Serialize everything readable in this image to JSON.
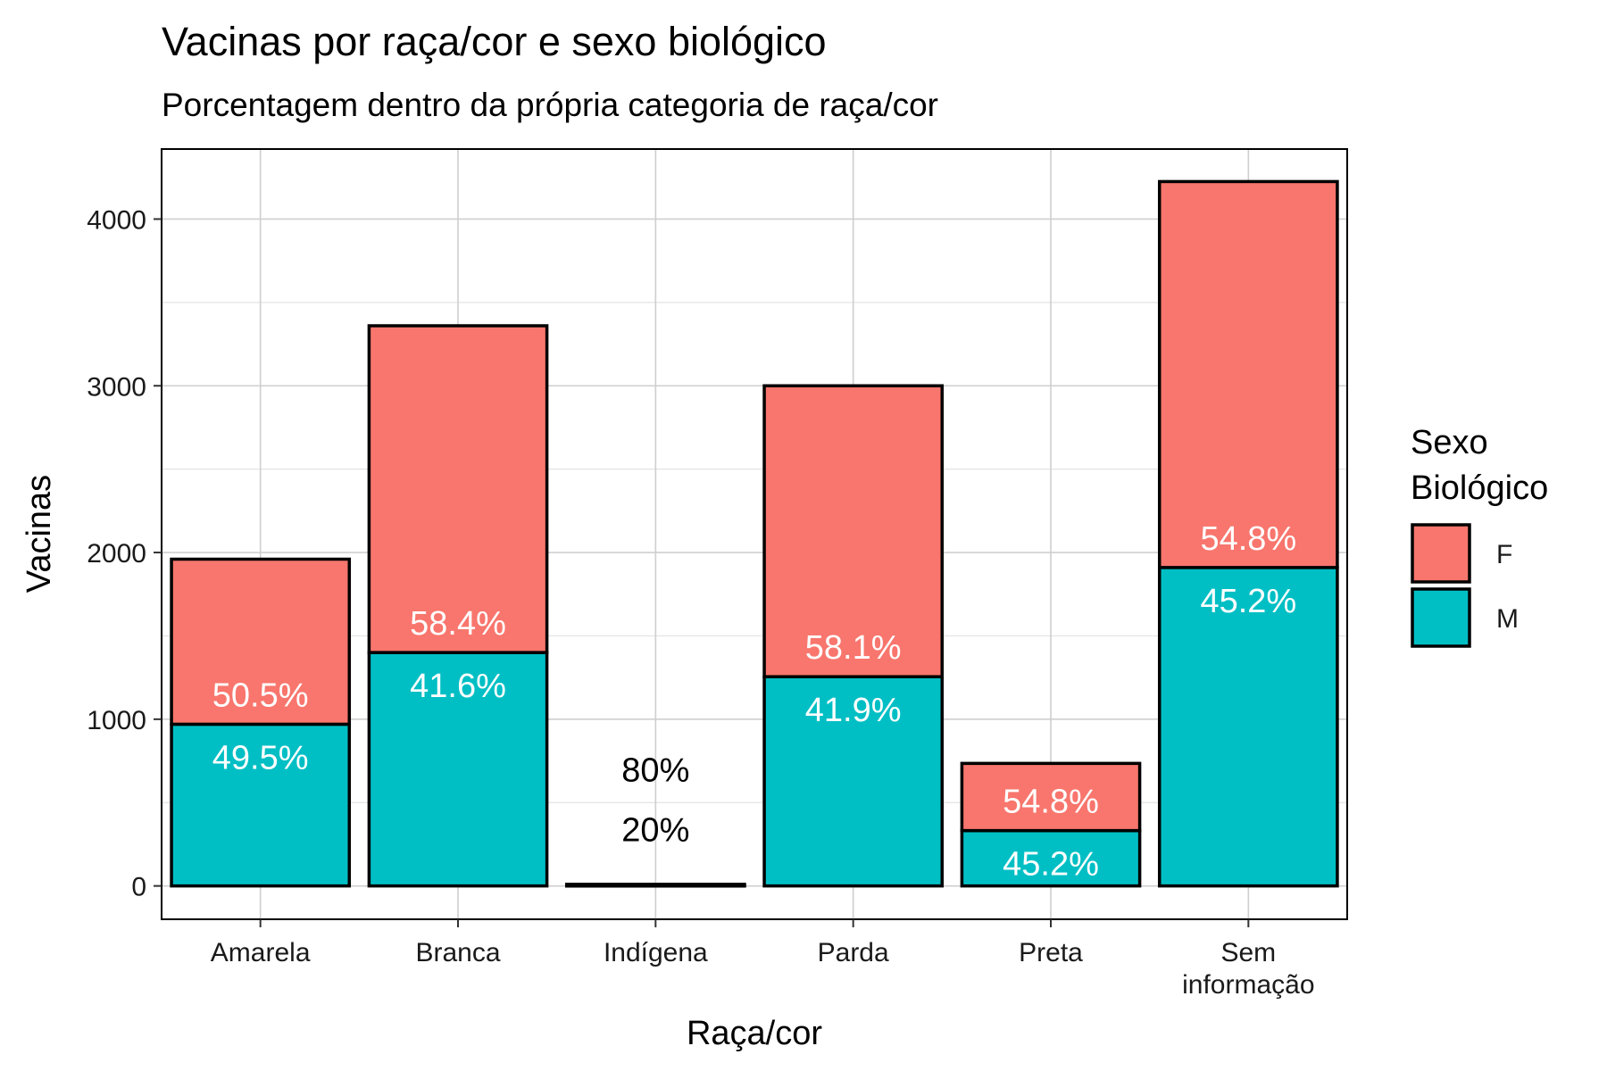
{
  "chart_data": {
    "type": "bar",
    "stacked": true,
    "title": "Vacinas por raça/cor e sexo biológico",
    "subtitle": "Porcentagem dentro da própria categoria de raça/cor",
    "xlabel": "Raça/cor",
    "ylabel": "Vacinas",
    "categories": [
      [
        "Amarela"
      ],
      [
        "Branca"
      ],
      [
        "Indígena"
      ],
      [
        "Parda"
      ],
      [
        "Preta"
      ],
      [
        "Sem",
        "informação"
      ]
    ],
    "series": [
      {
        "name": "M",
        "color": "#00BFC4",
        "values": [
          970,
          1400,
          2,
          1255,
          332,
          1910
        ],
        "labels": [
          "49.5%",
          "41.6%",
          "20%",
          "41.9%",
          "45.2%",
          "45.2%"
        ]
      },
      {
        "name": "F",
        "color": "#F8766D",
        "values": [
          990,
          1960,
          8,
          1745,
          403,
          2315
        ],
        "labels": [
          "50.5%",
          "58.4%",
          "80%",
          "58.1%",
          "54.8%",
          "54.8%"
        ]
      }
    ],
    "ylim": [
      -200,
      4420
    ],
    "yticks": [
      0,
      1000,
      2000,
      3000,
      4000
    ],
    "grid": true,
    "legend": {
      "title": [
        "Sexo",
        "Biológico"
      ],
      "position": "right",
      "items": [
        {
          "label": "F",
          "color": "#F8766D"
        },
        {
          "label": "M",
          "color": "#00BFC4"
        }
      ]
    }
  }
}
